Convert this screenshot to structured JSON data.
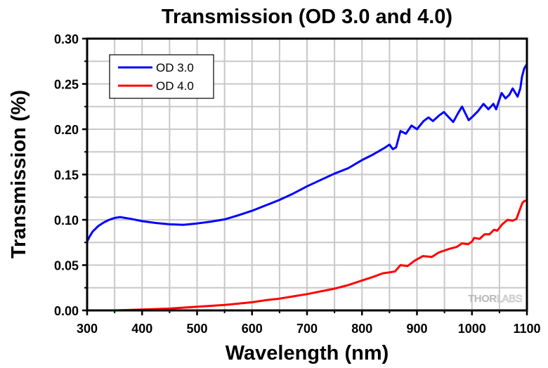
{
  "chart_data": {
    "type": "line",
    "title": "Transmission (OD 3.0 and 4.0)",
    "xlabel": "Wavelength (nm)",
    "ylabel": "Transmission (%)",
    "xlim": [
      300,
      1100
    ],
    "ylim": [
      0.0,
      0.3
    ],
    "xticks": [
      300,
      400,
      500,
      600,
      700,
      800,
      900,
      1000,
      1100
    ],
    "xtick_labels": [
      "300",
      "400",
      "500",
      "600",
      "700",
      "800",
      "900",
      "1000",
      "1100"
    ],
    "yticks": [
      0.0,
      0.05,
      0.1,
      0.15,
      0.2,
      0.25,
      0.3
    ],
    "ytick_labels": [
      "0.00",
      "0.05",
      "0.10",
      "0.15",
      "0.20",
      "0.25",
      "0.30"
    ],
    "x_minor_step": 50,
    "y_minor_step": 0.025,
    "grid": true,
    "legend_position": "top-left",
    "watermark": {
      "text_bold": "THOR",
      "text_light": "LABS"
    },
    "series": [
      {
        "name": "OD 3.0",
        "color": "#0000ff",
        "x": [
          300,
          305,
          310,
          315,
          320,
          330,
          340,
          350,
          360,
          380,
          400,
          425,
          450,
          475,
          500,
          525,
          550,
          575,
          600,
          625,
          650,
          675,
          700,
          725,
          750,
          775,
          800,
          820,
          840,
          850,
          856,
          862,
          870,
          880,
          890,
          900,
          912,
          921,
          929,
          940,
          949,
          958,
          966,
          975,
          982,
          994,
          1003,
          1011,
          1021,
          1030,
          1039,
          1044,
          1054,
          1061,
          1068,
          1074,
          1083,
          1088,
          1091,
          1095,
          1100
        ],
        "y": [
          0.076,
          0.082,
          0.087,
          0.09,
          0.093,
          0.097,
          0.1,
          0.102,
          0.103,
          0.101,
          0.0985,
          0.0965,
          0.095,
          0.0945,
          0.096,
          0.098,
          0.1005,
          0.105,
          0.11,
          0.116,
          0.122,
          0.129,
          0.137,
          0.144,
          0.151,
          0.157,
          0.166,
          0.172,
          0.179,
          0.183,
          0.178,
          0.18,
          0.198,
          0.195,
          0.204,
          0.2,
          0.209,
          0.213,
          0.209,
          0.215,
          0.219,
          0.213,
          0.208,
          0.218,
          0.225,
          0.21,
          0.215,
          0.22,
          0.228,
          0.222,
          0.228,
          0.222,
          0.24,
          0.234,
          0.238,
          0.245,
          0.236,
          0.245,
          0.258,
          0.267,
          0.272
        ]
      },
      {
        "name": "OD 4.0",
        "color": "#ff0000",
        "x": [
          300,
          350,
          375,
          400,
          450,
          500,
          550,
          600,
          627,
          650,
          675,
          700,
          725,
          750,
          775,
          800,
          820,
          838,
          850,
          860,
          870,
          883,
          896,
          911,
          927,
          940,
          959,
          972,
          982,
          993,
          1000,
          1004,
          1014,
          1023,
          1032,
          1040,
          1046,
          1055,
          1065,
          1074,
          1081,
          1087,
          1092,
          1096,
          1100
        ],
        "y": [
          0.0,
          0.0,
          0.0005,
          0.001,
          0.002,
          0.004,
          0.006,
          0.009,
          0.0115,
          0.013,
          0.0155,
          0.018,
          0.021,
          0.024,
          0.028,
          0.033,
          0.037,
          0.041,
          0.042,
          0.043,
          0.05,
          0.049,
          0.055,
          0.06,
          0.059,
          0.064,
          0.068,
          0.07,
          0.074,
          0.073,
          0.076,
          0.08,
          0.079,
          0.084,
          0.084,
          0.089,
          0.088,
          0.095,
          0.1,
          0.099,
          0.101,
          0.111,
          0.119,
          0.121,
          0.121
        ]
      }
    ]
  }
}
